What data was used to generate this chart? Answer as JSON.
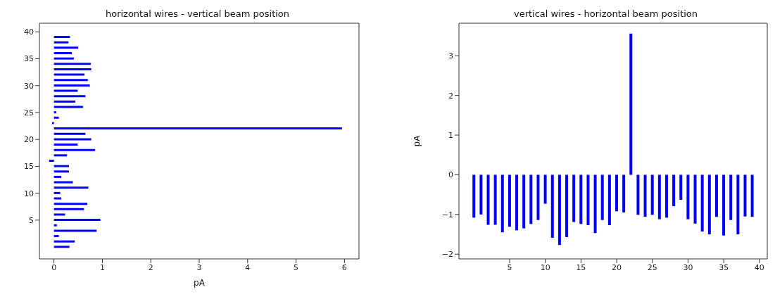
{
  "chart_data": [
    {
      "type": "bar",
      "orientation": "horizontal",
      "title": "horizontal wires - vertical beam position",
      "xlabel": "pA",
      "x": [
        0,
        1,
        2,
        3,
        4,
        5,
        6,
        7,
        8,
        9,
        10,
        11,
        12,
        13,
        14,
        15,
        16,
        17,
        18,
        19,
        20,
        21,
        22,
        23,
        24,
        25,
        26,
        27,
        28,
        29,
        30,
        31,
        32,
        33,
        34,
        35,
        36,
        37,
        38,
        39
      ],
      "values": [
        0.32,
        0.43,
        0.1,
        0.88,
        0.06,
        0.96,
        0.23,
        0.62,
        0.69,
        0.15,
        0.13,
        0.71,
        0.39,
        0.15,
        0.31,
        0.31,
        -0.1,
        0.27,
        0.85,
        0.49,
        0.77,
        0.65,
        5.95,
        -0.04,
        0.1,
        0.05,
        0.6,
        0.44,
        0.65,
        0.49,
        0.74,
        0.7,
        0.63,
        0.77,
        0.76,
        0.41,
        0.37,
        0.5,
        0.3,
        0.33
      ],
      "color": "#0000ff",
      "xlim": [
        -0.3,
        6.3
      ],
      "xticks": [
        0,
        1,
        2,
        3,
        4,
        5,
        6
      ],
      "ylim": [
        -2.2,
        41.6
      ],
      "yticks": [
        5,
        10,
        15,
        20,
        25,
        30,
        35,
        40
      ],
      "grid": false
    },
    {
      "type": "bar",
      "title": "vertical wires - horizontal beam position",
      "ylabel": "pA",
      "x": [
        0,
        1,
        2,
        3,
        4,
        5,
        6,
        7,
        8,
        9,
        10,
        11,
        12,
        13,
        14,
        15,
        16,
        17,
        18,
        19,
        20,
        21,
        22,
        23,
        24,
        25,
        26,
        27,
        28,
        29,
        30,
        31,
        32,
        33,
        34,
        35,
        36,
        37,
        38,
        39
      ],
      "values": [
        -1.08,
        -1.0,
        -1.26,
        -1.26,
        -1.45,
        -1.31,
        -1.4,
        -1.35,
        -1.24,
        -1.14,
        -0.73,
        -1.59,
        -1.77,
        -1.57,
        -1.19,
        -1.24,
        -1.27,
        -1.47,
        -1.14,
        -1.27,
        -0.92,
        -0.95,
        3.56,
        -1.01,
        -1.06,
        -1.01,
        -1.12,
        -1.08,
        -0.79,
        -0.63,
        -1.12,
        -1.23,
        -1.43,
        -1.5,
        -1.06,
        -1.53,
        -1.14,
        -1.5,
        -1.05,
        -1.06
      ],
      "color": "#0000ff",
      "xlim": [
        -2.1,
        41.1
      ],
      "xticks": [
        5,
        10,
        15,
        20,
        25,
        30,
        35,
        40
      ],
      "ylim": [
        -2.12,
        3.82
      ],
      "yticks": [
        -2,
        -1,
        0,
        1,
        2,
        3
      ],
      "grid": false
    }
  ]
}
